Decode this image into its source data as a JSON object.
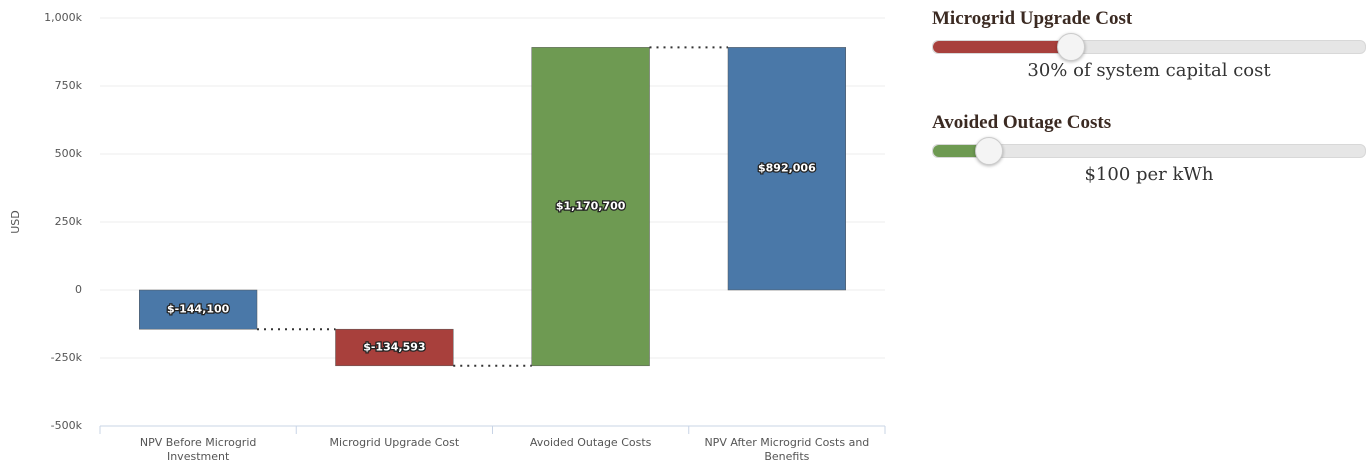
{
  "chart_data": {
    "type": "waterfall",
    "y_label": "USD",
    "categories": [
      "NPV Before Microgrid Investment",
      "Microgrid Upgrade Cost",
      "Avoided Outage Costs",
      "NPV After Microgrid Costs and Benefits"
    ],
    "values": [
      -144100,
      -134593,
      1170700,
      892006
    ],
    "value_labels": [
      "$-144,100",
      "$-134,593",
      "$1,170,700",
      "$892,006"
    ],
    "is_sum": [
      false,
      false,
      false,
      true
    ],
    "colors": [
      "#4a78a8",
      "#a8403c",
      "#6e9a52",
      "#4a78a8"
    ],
    "ylim": [
      -500000,
      1000000
    ],
    "yticks": [
      {
        "value": -500000,
        "label": "-500k"
      },
      {
        "value": -250000,
        "label": "-250k"
      },
      0,
      {
        "value": 250000,
        "label": "250k"
      },
      {
        "value": 500000,
        "label": "500k"
      },
      {
        "value": 750000,
        "label": "750k"
      },
      {
        "value": 1000000,
        "label": "1,000k"
      }
    ],
    "grid": true
  },
  "controls": [
    {
      "title": "Microgrid Upgrade Cost",
      "label": "30% of system capital cost",
      "color": "#a8403c"
    },
    {
      "title": "Avoided Outage Costs",
      "label": "$100 per kWh",
      "color": "#6e9a52"
    }
  ]
}
